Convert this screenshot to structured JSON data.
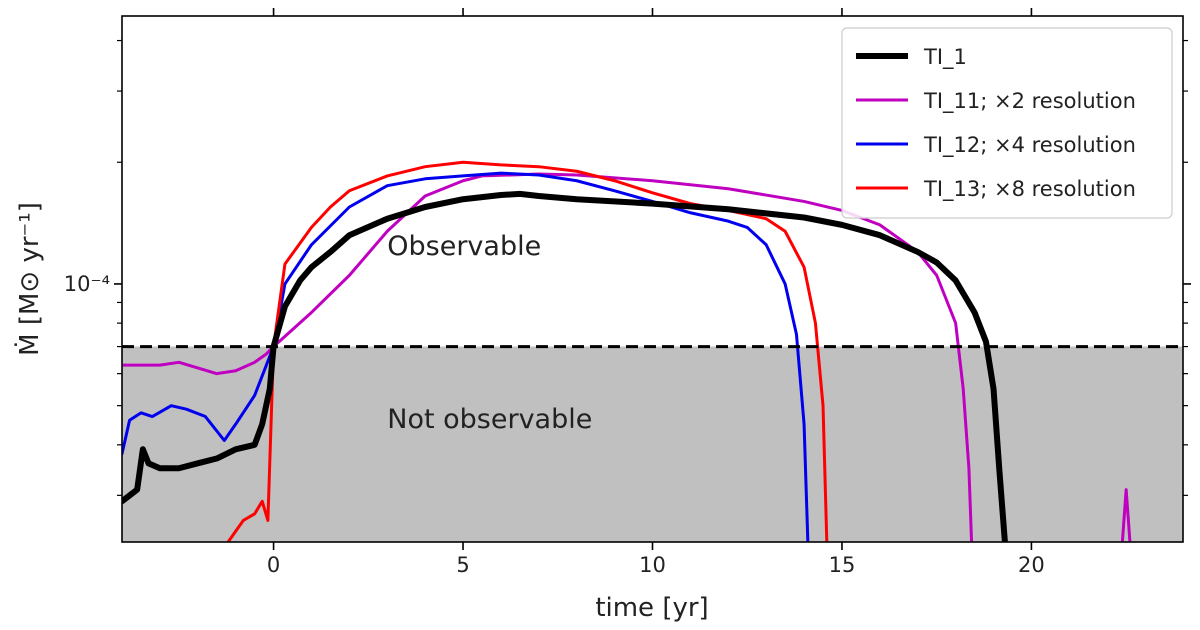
{
  "chart_data": {
    "type": "line",
    "title": "",
    "xlabel": "time [yr]",
    "ylabel": "Ṁ [M⊙ yr⁻¹]",
    "xlim": [
      -4,
      24
    ],
    "ylim": [
      2.3e-05,
      0.00046
    ],
    "yscale": "log",
    "x_ticks": [
      {
        "value": 0,
        "label": "0"
      },
      {
        "value": 5,
        "label": "5"
      },
      {
        "value": 10,
        "label": "10"
      },
      {
        "value": 15,
        "label": "15"
      },
      {
        "value": 20,
        "label": "20"
      }
    ],
    "y_major_ticks": [
      {
        "value": 0.0001,
        "label": "10⁻⁴"
      }
    ],
    "y_minor_ticks": [
      3e-05,
      4e-05,
      5e-05,
      6e-05,
      7e-05,
      8e-05,
      9e-05,
      0.0002,
      0.0003,
      0.0004
    ],
    "threshold": {
      "value": 7e-05,
      "style": "dashed",
      "color": "#000000"
    },
    "regions": [
      {
        "name": "observable",
        "label": "Observable",
        "x": 3.0,
        "y": 0.000118
      },
      {
        "name": "not-observable",
        "label": "Not observable",
        "x": 3.0,
        "y": 4.4e-05,
        "fill": "#c0c0c0"
      }
    ],
    "legend_position": "top-right",
    "series": [
      {
        "name": "TI_1",
        "color": "#000000",
        "width": 6,
        "points": [
          [
            -4,
            2.9e-05
          ],
          [
            -3.6,
            3.1e-05
          ],
          [
            -3.45,
            3.9e-05
          ],
          [
            -3.3,
            3.6e-05
          ],
          [
            -3.0,
            3.5e-05
          ],
          [
            -2.5,
            3.5e-05
          ],
          [
            -2,
            3.6e-05
          ],
          [
            -1.5,
            3.7e-05
          ],
          [
            -1,
            3.9e-05
          ],
          [
            -0.5,
            4e-05
          ],
          [
            -0.3,
            4.5e-05
          ],
          [
            -0.1,
            5.5e-05
          ],
          [
            0,
            7e-05
          ],
          [
            0.3,
            8.8e-05
          ],
          [
            0.7,
            0.000102
          ],
          [
            1,
            0.00011
          ],
          [
            1.5,
            0.00012
          ],
          [
            2,
            0.000132
          ],
          [
            3,
            0.000145
          ],
          [
            4,
            0.000155
          ],
          [
            5,
            0.000162
          ],
          [
            6,
            0.000166
          ],
          [
            6.5,
            0.000167
          ],
          [
            7,
            0.000165
          ],
          [
            8,
            0.000162
          ],
          [
            10,
            0.000158
          ],
          [
            12,
            0.000153
          ],
          [
            14,
            0.000146
          ],
          [
            15,
            0.00014
          ],
          [
            16,
            0.000132
          ],
          [
            17,
            0.00012
          ],
          [
            17.5,
            0.000113
          ],
          [
            18,
            0.000102
          ],
          [
            18.5,
            8.5e-05
          ],
          [
            18.8,
            7.2e-05
          ],
          [
            19.0,
            5.5e-05
          ],
          [
            19.15,
            3.5e-05
          ],
          [
            19.3,
            2.3e-05
          ]
        ]
      },
      {
        "name": "TI_11; ×2 resolution",
        "color": "#c000c0",
        "width": 3,
        "points": [
          [
            -4,
            6.3e-05
          ],
          [
            -3,
            6.3e-05
          ],
          [
            -2.5,
            6.4e-05
          ],
          [
            -2,
            6.2e-05
          ],
          [
            -1.5,
            6e-05
          ],
          [
            -1,
            6.1e-05
          ],
          [
            -0.5,
            6.4e-05
          ],
          [
            -0.2,
            6.7e-05
          ],
          [
            0,
            7e-05
          ],
          [
            1,
            8.5e-05
          ],
          [
            2,
            0.000105
          ],
          [
            3,
            0.000135
          ],
          [
            4,
            0.000165
          ],
          [
            5,
            0.00018
          ],
          [
            5.5,
            0.000185
          ],
          [
            7,
            0.000187
          ],
          [
            8,
            0.000186
          ],
          [
            10,
            0.00018
          ],
          [
            12,
            0.000172
          ],
          [
            14,
            0.00016
          ],
          [
            15,
            0.000152
          ],
          [
            16,
            0.00014
          ],
          [
            17,
            0.00012
          ],
          [
            17.5,
            0.000105
          ],
          [
            18,
            8e-05
          ],
          [
            18.2,
            5.5e-05
          ],
          [
            18.35,
            3.5e-05
          ],
          [
            18.42,
            2.3e-05
          ]
        ]
      },
      {
        "name": "TI_12; ×4 resolution",
        "color": "#0000ee",
        "width": 3,
        "points": [
          [
            -4,
            3.8e-05
          ],
          [
            -3.8,
            4.6e-05
          ],
          [
            -3.5,
            4.8e-05
          ],
          [
            -3.2,
            4.7e-05
          ],
          [
            -2.7,
            5e-05
          ],
          [
            -2.3,
            4.9e-05
          ],
          [
            -1.8,
            4.7e-05
          ],
          [
            -1.3,
            4.1e-05
          ],
          [
            -1,
            4.5e-05
          ],
          [
            -0.5,
            5.3e-05
          ],
          [
            0,
            7e-05
          ],
          [
            0.3,
            0.0001
          ],
          [
            1,
            0.000125
          ],
          [
            2,
            0.000155
          ],
          [
            3,
            0.000175
          ],
          [
            4,
            0.000182
          ],
          [
            5,
            0.000185
          ],
          [
            6,
            0.000188
          ],
          [
            7,
            0.000186
          ],
          [
            8,
            0.00018
          ],
          [
            9,
            0.00017
          ],
          [
            10,
            0.00016
          ],
          [
            11,
            0.00015
          ],
          [
            12,
            0.000143
          ],
          [
            12.5,
            0.000138
          ],
          [
            13,
            0.000125
          ],
          [
            13.5,
            0.0001
          ],
          [
            13.8,
            7.5e-05
          ],
          [
            14.0,
            4.5e-05
          ],
          [
            14.1,
            2.3e-05
          ]
        ]
      },
      {
        "name": "TI_13; ×8 resolution",
        "color": "#ff0000",
        "width": 3,
        "points": [
          [
            -1.2,
            2.3e-05
          ],
          [
            -0.8,
            2.6e-05
          ],
          [
            -0.5,
            2.7e-05
          ],
          [
            -0.3,
            2.9e-05
          ],
          [
            -0.15,
            2.6e-05
          ],
          [
            0,
            7e-05
          ],
          [
            0.3,
            0.000112
          ],
          [
            1,
            0.000138
          ],
          [
            1.5,
            0.000155
          ],
          [
            2,
            0.00017
          ],
          [
            3,
            0.000185
          ],
          [
            4,
            0.000195
          ],
          [
            5,
            0.0002
          ],
          [
            6,
            0.000197
          ],
          [
            7,
            0.000195
          ],
          [
            8,
            0.00019
          ],
          [
            9,
            0.00018
          ],
          [
            10,
            0.000168
          ],
          [
            11,
            0.000158
          ],
          [
            12,
            0.000152
          ],
          [
            13,
            0.000145
          ],
          [
            13.5,
            0.000135
          ],
          [
            14,
            0.00011
          ],
          [
            14.3,
            8e-05
          ],
          [
            14.5,
            5e-05
          ],
          [
            14.6,
            2.3e-05
          ]
        ]
      }
    ],
    "extra_marks": [
      {
        "name": "TI_11 spike",
        "series": "TI_11; ×2 resolution",
        "points": [
          [
            22.4,
            2.3e-05
          ],
          [
            22.5,
            3.1e-05
          ],
          [
            22.6,
            2.3e-05
          ]
        ]
      }
    ]
  }
}
